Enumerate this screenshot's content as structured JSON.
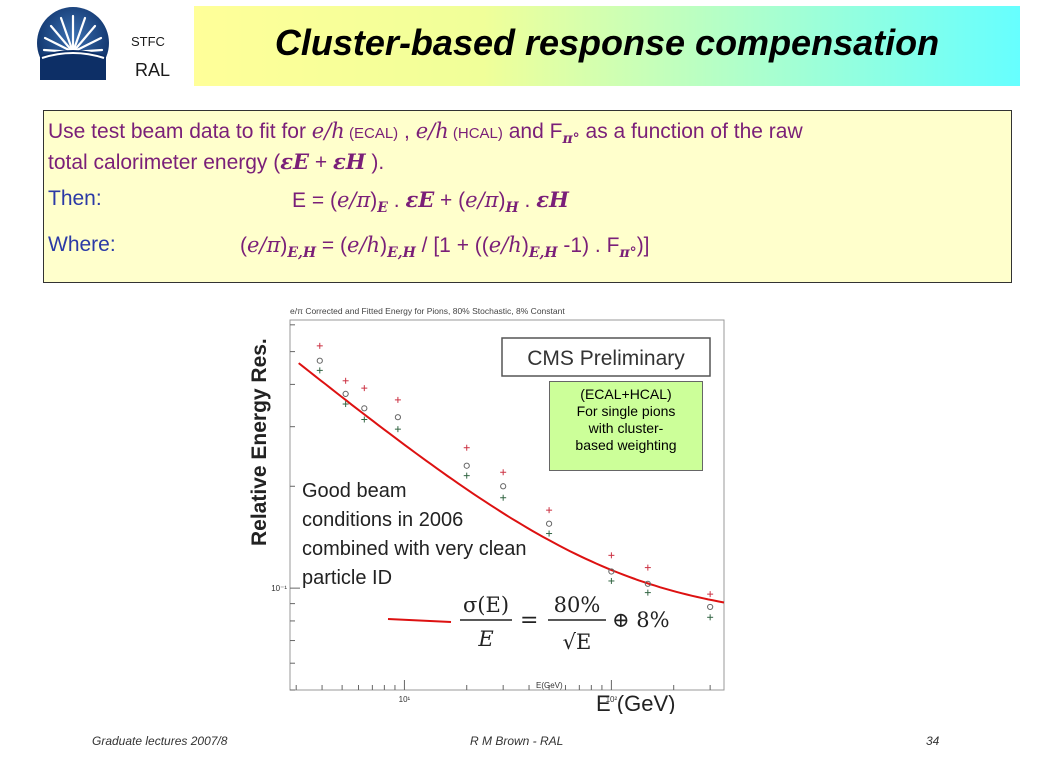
{
  "header": {
    "org_top": "STFC",
    "org_bottom": "RAL",
    "title": "Cluster-based response compensation"
  },
  "text": {
    "l1_a": "Use test beam data to fit for ",
    "l1_eh": "e/h",
    "l1_ecal": " (ECAL)",
    "l1_sep": " , ",
    "l1_eh2": "e/h",
    "l1_hcal": " (HCAL)",
    "l1_and": " and F",
    "l1_pi": "π°",
    "l1_rest": " as a function of the raw",
    "l2": "total calorimeter energy (",
    "l2_eps_e": "εE",
    "l2_plus": " + ",
    "l2_eps_h": "εH",
    "l2_end": " ).",
    "then_label": "Then:",
    "then_eq_a": "E = (",
    "then_epi": "e/π",
    "then_sub_e": "E",
    "then_dot1": " . ",
    "then_eps_e": "εE",
    "then_plus": " + (",
    "then_epi2": "e/π",
    "then_sub_h": "H",
    "then_dot2": " . ",
    "then_eps_h": "εH",
    "where_label": "Where:",
    "where_a": "(",
    "where_epi": "e/π",
    "where_sub1": "E,H",
    "where_eq": " = (",
    "where_eh": "e/h",
    "where_sub2": "E,H",
    "where_div": " / [1 + ((",
    "where_eh2": "e/h",
    "where_sub3": "E,H",
    "where_tail": " -1) . F",
    "where_pi": "π°",
    "where_end": ")]"
  },
  "callout": {
    "l1": "(ECAL+HCAL)",
    "l2": "For single pions",
    "l3": "with cluster-",
    "l4": "based weighting"
  },
  "footer": {
    "left": "Graduate lectures 2007/8",
    "center": "R M Brown - RAL",
    "right": "34"
  },
  "chart_data": {
    "type": "scatter",
    "title": "e/π Corrected and Fitted Energy for Pions, 80% Stochastic, 8% Constant",
    "xlabel": "E (GeV)",
    "xlabel_small": "E(GeV)",
    "ylabel": "Relative Energy  Res.",
    "x_scale": "log",
    "y_scale": "log",
    "xlim": [
      2.8,
      350
    ],
    "ylim": [
      0.05,
      0.62
    ],
    "x_tick_labels": [
      {
        "value": 10,
        "label": "10¹"
      },
      {
        "value": 100,
        "label": "10²"
      }
    ],
    "y_tick_labels": [
      {
        "value": 0.1,
        "label": "10⁻¹"
      }
    ],
    "badge": "CMS Preliminary",
    "annotation": [
      "Good beam",
      "conditions in 2006",
      "combined with very clean",
      "particle ID"
    ],
    "formula": {
      "lhs_num": "σ(E)",
      "lhs_den": "E",
      "rhs_num": "80%",
      "rhs_den": "√E",
      "const": "⊕ 8%"
    },
    "fit_function": "sqrt((0.8^2)/E + 0.08^2)",
    "series": [
      {
        "marker": "plus-red",
        "color": "#cc3344",
        "x": [
          3.9,
          5.2,
          6.4,
          9.3,
          20,
          30,
          50,
          100,
          150,
          300
        ],
        "y": [
          0.52,
          0.41,
          0.39,
          0.36,
          0.26,
          0.22,
          0.17,
          0.125,
          0.115,
          0.096
        ]
      },
      {
        "marker": "circle",
        "color": "#666666",
        "x": [
          3.9,
          5.2,
          6.4,
          9.3,
          20,
          30,
          50,
          100,
          150,
          300
        ],
        "y": [
          0.47,
          0.375,
          0.34,
          0.32,
          0.23,
          0.2,
          0.155,
          0.112,
          0.103,
          0.088
        ]
      },
      {
        "marker": "plus-green",
        "color": "#336644",
        "x": [
          3.9,
          5.2,
          6.4,
          9.3,
          20,
          30,
          50,
          100,
          150,
          300
        ],
        "y": [
          0.44,
          0.35,
          0.315,
          0.295,
          0.215,
          0.185,
          0.145,
          0.105,
          0.097,
          0.082
        ]
      }
    ],
    "colors": {
      "fit": "#dd1111"
    }
  }
}
